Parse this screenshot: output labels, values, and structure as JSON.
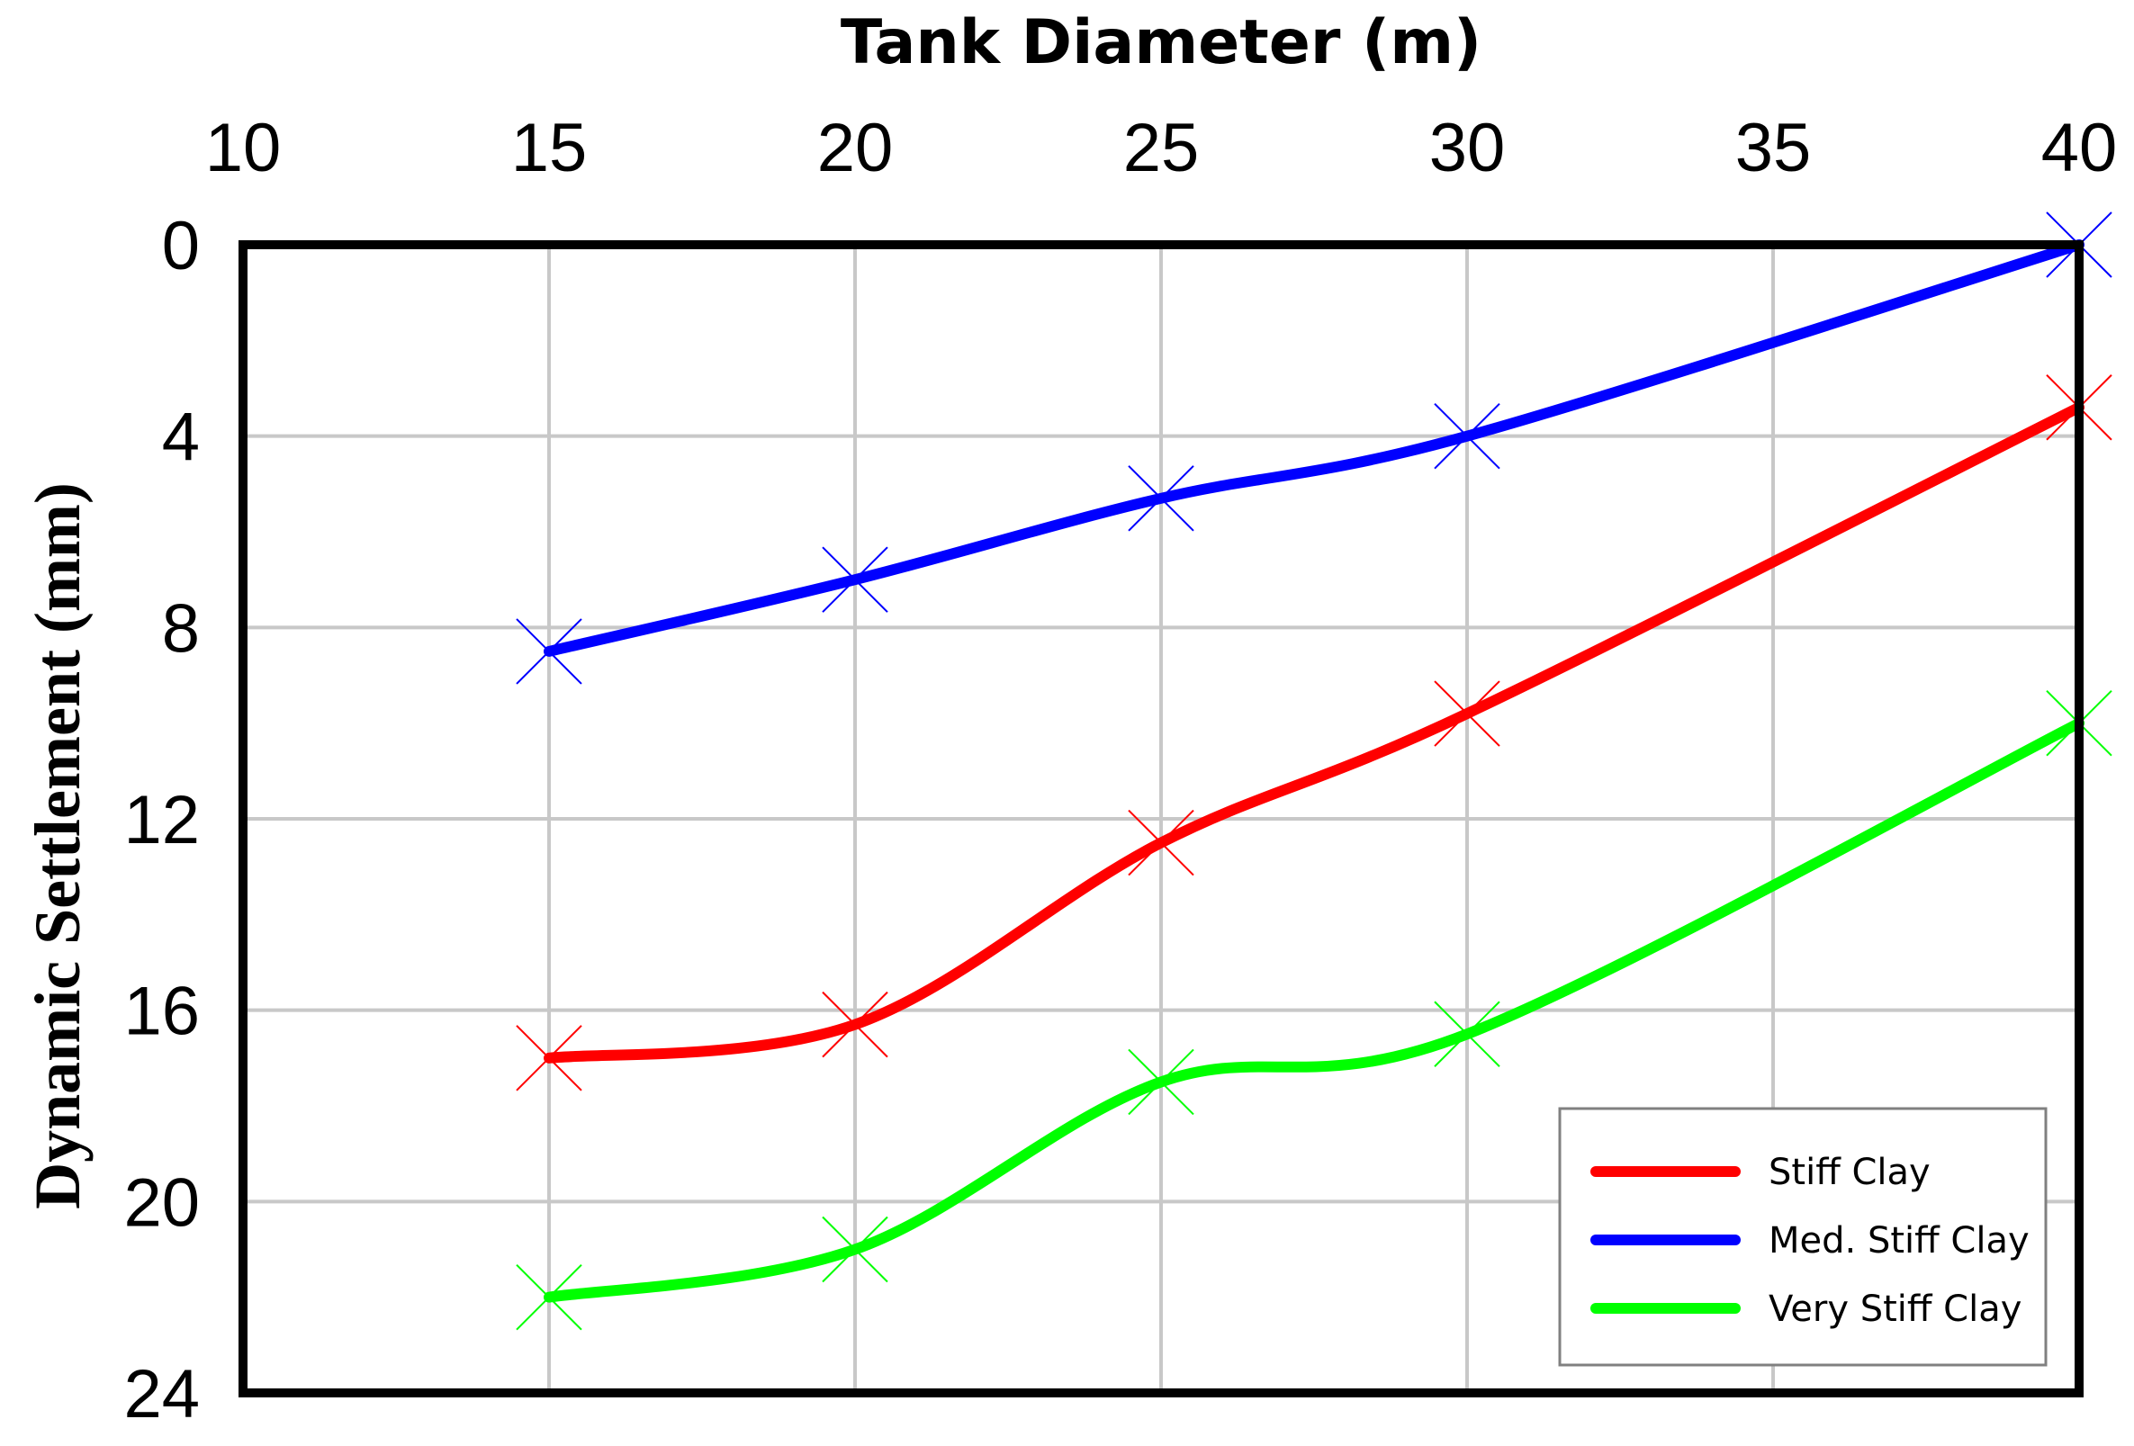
{
  "chart_data": {
    "type": "line",
    "xlabel": "Tank Diameter (m)",
    "ylabel": "Dynamic Settlement (mm)",
    "x_axis_position": "top",
    "y_axis_inverted": true,
    "xlim": [
      10,
      40
    ],
    "ylim": [
      0,
      24
    ],
    "x_ticks": [
      10,
      15,
      20,
      25,
      30,
      35,
      40
    ],
    "y_ticks": [
      0,
      4,
      8,
      12,
      16,
      20,
      24
    ],
    "grid": true,
    "smooth": true,
    "marker": "x",
    "legend_position": "bottom-right",
    "x": [
      15,
      20,
      25,
      30,
      40
    ],
    "series": [
      {
        "name": "Stiff Clay",
        "color": "#ff0000",
        "values": [
          17.0,
          16.3,
          12.5,
          9.8,
          3.4
        ]
      },
      {
        "name": "Med. Stiff Clay",
        "color": "#0000ff",
        "values": [
          8.5,
          7.0,
          5.3,
          4.0,
          0.0
        ]
      },
      {
        "name": "Very Stiff Clay",
        "color": "#00ff00",
        "values": [
          22.0,
          21.0,
          17.5,
          16.5,
          10.0
        ]
      }
    ]
  }
}
